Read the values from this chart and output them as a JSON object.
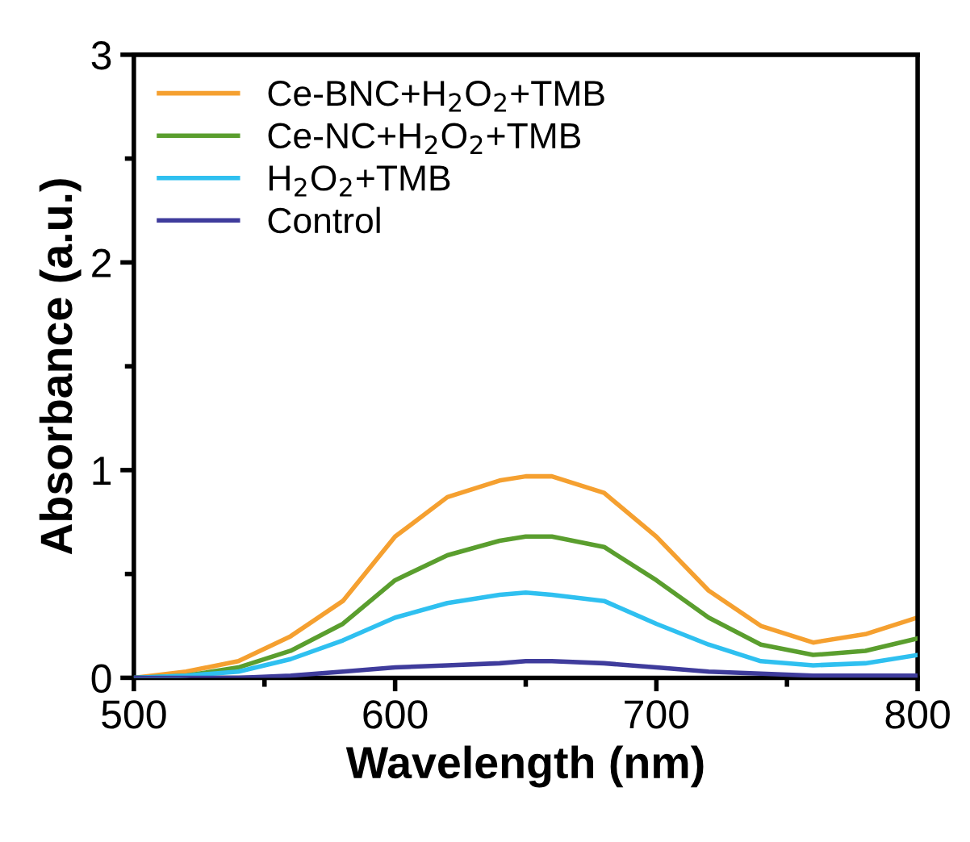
{
  "chart_data": {
    "type": "line",
    "xlabel": "Wavelength (nm)",
    "ylabel": "Absorbance (a.u.)",
    "xlim": [
      500,
      800
    ],
    "ylim": [
      0,
      3
    ],
    "xticks": [
      500,
      {
        "value": 550,
        "label": null
      },
      600,
      {
        "value": 650,
        "label": null
      },
      700,
      {
        "value": 750,
        "label": null
      },
      800
    ],
    "yticks": [
      0,
      {
        "value": 0.5,
        "label": null
      },
      1,
      {
        "value": 1.5,
        "label": null
      },
      2,
      {
        "value": 2.5,
        "label": null
      },
      3
    ],
    "x": [
      500,
      520,
      540,
      560,
      580,
      600,
      620,
      640,
      650,
      660,
      680,
      700,
      720,
      740,
      760,
      780,
      800
    ],
    "series": [
      {
        "name": "Ce-BNC+H$_{2}$O$_{2}$+TMB",
        "color": "#f5a030",
        "values": [
          0,
          0.03,
          0.08,
          0.2,
          0.37,
          0.68,
          0.87,
          0.95,
          0.97,
          0.97,
          0.89,
          0.68,
          0.42,
          0.25,
          0.17,
          0.21,
          0.29
        ]
      },
      {
        "name": "Ce-NC+H$_{2}$O$_{2}$+TMB",
        "color": "#5a9e2e",
        "values": [
          0,
          0.01,
          0.05,
          0.13,
          0.26,
          0.47,
          0.59,
          0.66,
          0.68,
          0.68,
          0.63,
          0.47,
          0.29,
          0.16,
          0.11,
          0.13,
          0.19
        ]
      },
      {
        "name": "H$_{2}$O$_{2}$+TMB",
        "color": "#2fc0f0",
        "values": [
          0,
          0.01,
          0.03,
          0.09,
          0.18,
          0.29,
          0.36,
          0.4,
          0.41,
          0.4,
          0.37,
          0.26,
          0.16,
          0.08,
          0.06,
          0.07,
          0.11
        ]
      },
      {
        "name": "Control",
        "color": "#3f3c9c",
        "values": [
          0,
          0,
          0,
          0.01,
          0.03,
          0.05,
          0.06,
          0.07,
          0.08,
          0.08,
          0.07,
          0.05,
          0.03,
          0.02,
          0.01,
          0.01,
          0.01
        ]
      }
    ],
    "legend": "top left",
    "grid": false,
    "marker": "none",
    "line_style": "solid"
  }
}
